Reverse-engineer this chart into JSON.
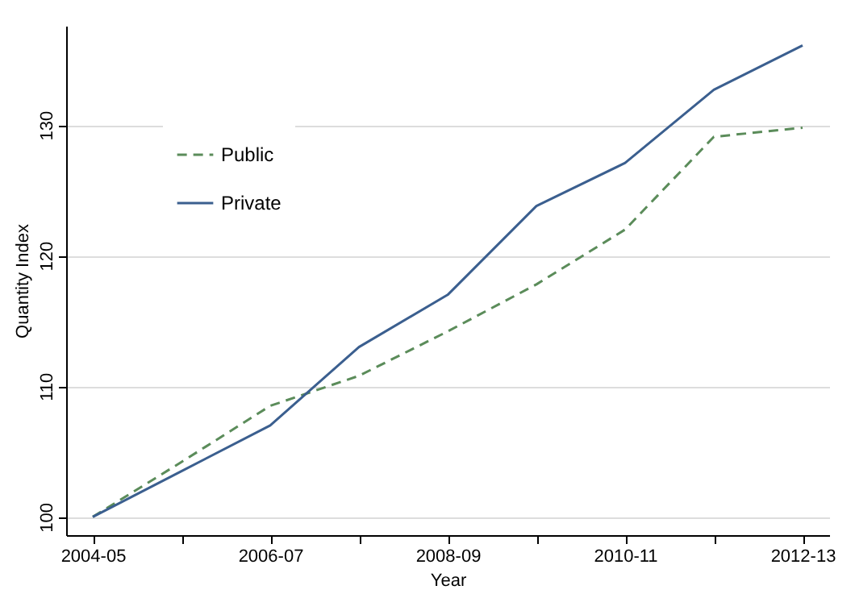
{
  "chart_data": {
    "type": "line",
    "xlabel": "Year",
    "ylabel": "Quantity Index",
    "categories": [
      "2004-05",
      null,
      "2006-07",
      null,
      "2008-09",
      null,
      "2010-11",
      null,
      "2012-13"
    ],
    "series": [
      {
        "name": "Public",
        "color": "#5b8c5a",
        "line_style": "dashed",
        "values": [
          100,
          104.2,
          108.5,
          110.8,
          114.2,
          117.8,
          122,
          129.1,
          129.8
        ]
      },
      {
        "name": "Private",
        "color": "#3b5f8f",
        "line_style": "solid",
        "values": [
          100,
          103.5,
          107,
          113,
          117,
          123.8,
          127.1,
          132.7,
          136.1
        ]
      }
    ],
    "ylim": [
      98.6,
      137.6
    ],
    "yticks": [
      100,
      110,
      120,
      130
    ],
    "grid": "y",
    "legend": "top left",
    "marker": "none"
  }
}
